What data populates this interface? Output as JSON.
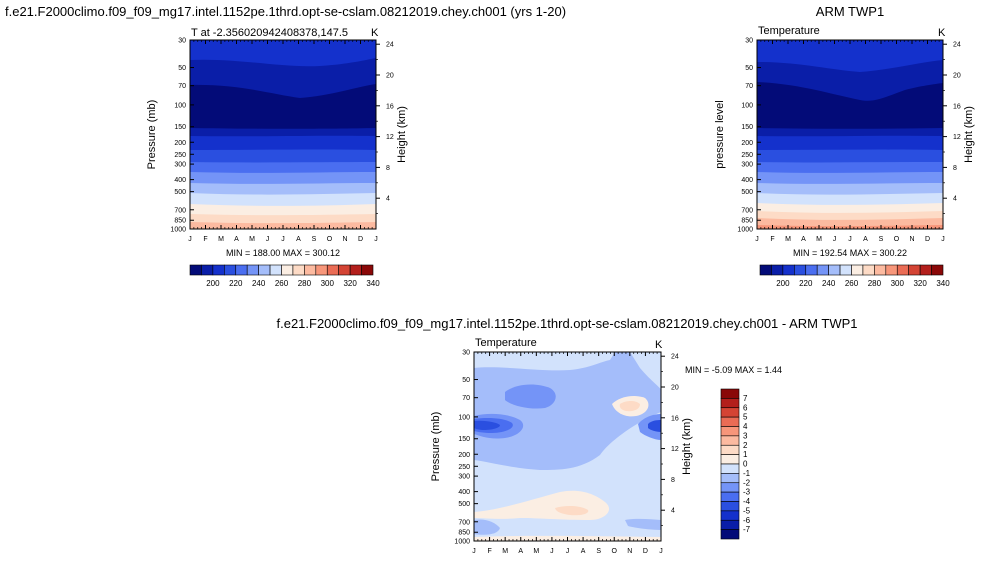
{
  "panels": {
    "model": {
      "title": "f.e21.F2000climo.f09_f09_mg17.intel.1152pe.1thrd.opt-se-cslam.08212019.chey.ch001 (yrs 1-20)",
      "left_string": "T at -2.356020942408378,147.5",
      "right_string": "K",
      "ylabel": "Pressure (mb)",
      "y2label": "Height (km)",
      "minmax": "MIN = 188.00 MAX = 300.12"
    },
    "obs": {
      "title": "ARM TWP1",
      "left_string": "Temperature",
      "right_string": "K",
      "ylabel": "pressure level",
      "y2label": "Height (km)",
      "minmax": "MIN = 192.54 MAX = 300.22"
    },
    "diff": {
      "title": "f.e21.F2000climo.f09_f09_mg17.intel.1152pe.1thrd.opt-se-cslam.08212019.chey.ch001 - ARM TWP1",
      "left_string": "Temperature",
      "right_string": "K",
      "ylabel": "Pressure (mb)",
      "y2label": "Height (km)",
      "minmax": "MIN =  -5.09 MAX =  1.44"
    }
  },
  "chart_data": [
    {
      "type": "heatmap",
      "title": "f.e21.F2000climo.f09_f09_mg17.intel.1152pe.1thrd.opt-se-cslam.08212019.chey.ch001 (yrs 1-20)",
      "subtitle": "T at -2.356020942408378,147.5",
      "units": "K",
      "ylabel": "Pressure (mb)",
      "y2label": "Height (km)",
      "x_ticks": [
        "J",
        "F",
        "M",
        "A",
        "M",
        "J",
        "J",
        "A",
        "S",
        "O",
        "N",
        "D",
        "J"
      ],
      "y_ticks": [
        30,
        50,
        70,
        100,
        150,
        200,
        250,
        300,
        400,
        500,
        700,
        850,
        1000
      ],
      "y2_ticks": [
        24,
        20,
        16,
        12,
        8,
        4
      ],
      "ylim": [
        1000,
        30
      ],
      "y_scale": "log",
      "min": 188.0,
      "max": 300.12,
      "levels": [
        190,
        200,
        210,
        220,
        230,
        240,
        250,
        260,
        270,
        280,
        290,
        300,
        310,
        320,
        330,
        340,
        350
      ],
      "colorbar_labels": [
        200,
        220,
        240,
        260,
        280,
        300,
        320,
        340
      ]
    },
    {
      "type": "heatmap",
      "title": "ARM TWP1",
      "subtitle": "Temperature",
      "units": "K",
      "ylabel": "pressure level",
      "y2label": "Height (km)",
      "x_ticks": [
        "J",
        "F",
        "M",
        "A",
        "M",
        "J",
        "J",
        "A",
        "S",
        "O",
        "N",
        "D",
        "J"
      ],
      "y_ticks": [
        30,
        50,
        70,
        100,
        150,
        200,
        250,
        300,
        400,
        500,
        700,
        850,
        1000
      ],
      "y2_ticks": [
        24,
        20,
        16,
        12,
        8,
        4
      ],
      "ylim": [
        1000,
        30
      ],
      "y_scale": "log",
      "min": 192.54,
      "max": 300.22,
      "levels": [
        190,
        200,
        210,
        220,
        230,
        240,
        250,
        260,
        270,
        280,
        290,
        300,
        310,
        320,
        330,
        340,
        350
      ],
      "colorbar_labels": [
        200,
        220,
        240,
        260,
        280,
        300,
        320,
        340
      ]
    },
    {
      "type": "heatmap",
      "title": "f.e21.F2000climo.f09_f09_mg17.intel.1152pe.1thrd.opt-se-cslam.08212019.chey.ch001 - ARM TWP1",
      "subtitle": "Temperature",
      "units": "K",
      "ylabel": "Pressure (mb)",
      "y2label": "Height (km)",
      "x_ticks": [
        "J",
        "F",
        "M",
        "A",
        "M",
        "J",
        "J",
        "A",
        "S",
        "O",
        "N",
        "D",
        "J"
      ],
      "y_ticks": [
        30,
        50,
        70,
        100,
        150,
        200,
        250,
        300,
        400,
        500,
        700,
        850,
        1000
      ],
      "y2_ticks": [
        24,
        20,
        16,
        12,
        8,
        4
      ],
      "ylim": [
        1000,
        30
      ],
      "y_scale": "log",
      "min": -5.09,
      "max": 1.44,
      "levels": [
        -7,
        -6,
        -5,
        -4,
        -3,
        -2,
        -1,
        0,
        1,
        2,
        3,
        4,
        5,
        6,
        7
      ],
      "colorbar_labels": [
        7,
        6,
        5,
        4,
        3,
        2,
        1,
        0,
        -1,
        -2,
        -3,
        -4,
        -5,
        -6,
        -7
      ]
    }
  ],
  "colors": {
    "bluered": [
      "#030b78",
      "#0a1ea8",
      "#1431cc",
      "#2a4fe0",
      "#4a6ef0",
      "#7494f7",
      "#a4bdfa",
      "#d2e2fc",
      "#fbeee3",
      "#fddbc6",
      "#fcbaa0",
      "#f7967a",
      "#ea6c55",
      "#d44434",
      "#b31f1c",
      "#8a0808"
    ],
    "diff": [
      "#8a0808",
      "#b31f1c",
      "#d44434",
      "#ea6c55",
      "#f7967a",
      "#fcbaa0",
      "#fddbc6",
      "#fbeee3",
      "#d2e2fc",
      "#a4bdfa",
      "#7494f7",
      "#4a6ef0",
      "#2a4fe0",
      "#1431cc",
      "#0a1ea8",
      "#030b78"
    ]
  }
}
